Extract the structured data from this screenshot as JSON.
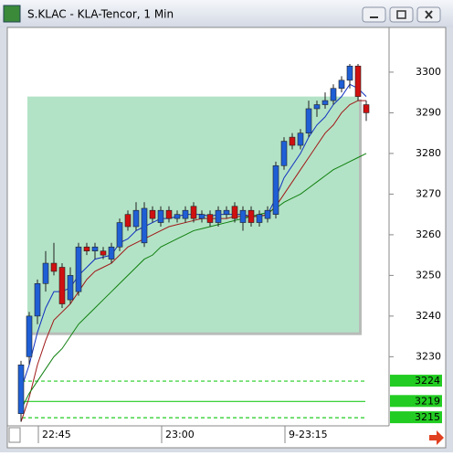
{
  "window": {
    "title": "S.KLAC - KLA-Tencor, 1 Min"
  },
  "chart_data": {
    "type": "candlestick",
    "categories": [
      null,
      null,
      "22:45",
      null,
      null,
      null,
      null,
      null,
      null,
      null,
      null,
      null,
      null,
      null,
      null,
      null,
      null,
      "23:00",
      null,
      null,
      null,
      null,
      null,
      null,
      null,
      null,
      null,
      null,
      null,
      null,
      null,
      null,
      "9-23:15",
      null,
      null,
      null,
      null,
      null,
      null,
      null,
      null,
      null,
      null
    ],
    "open": [
      3216,
      3230,
      3240,
      3248,
      3253,
      3252,
      3244,
      3246,
      3257,
      3256,
      3256,
      3254,
      3257,
      3265,
      3262,
      3258,
      3266,
      3263,
      3266,
      3264,
      3264,
      3267,
      3264,
      3265,
      3263,
      3265,
      3267,
      3263,
      3266,
      3263,
      3264,
      3265,
      3277,
      3284,
      3282,
      3285,
      3291,
      3292,
      3293,
      3296,
      3298,
      3301.5,
      3292
    ],
    "high": [
      3229,
      3241,
      3249,
      3256,
      3258,
      3253,
      3252,
      3258,
      3258,
      3258,
      3257,
      3258,
      3264,
      3266,
      3268,
      3268,
      3267,
      3267,
      3267,
      3266,
      3267,
      3268,
      3266,
      3266,
      3267,
      3267,
      3268,
      3267,
      3267,
      3266,
      3267,
      3278,
      3284,
      3285,
      3286,
      3293,
      3293,
      3295,
      3297,
      3299,
      3302,
      3302,
      3293
    ],
    "low": [
      3214,
      3228,
      3238,
      3246,
      3250,
      3242,
      3243,
      3245,
      3255,
      3254,
      3254,
      3253,
      3256,
      3261,
      3261,
      3257,
      3263,
      3262,
      3263,
      3263,
      3263,
      3263,
      3263,
      3262,
      3262,
      3264,
      3263,
      3261,
      3262,
      3262,
      3263,
      3264,
      3276,
      3281,
      3281,
      3284,
      3289,
      3291,
      3292,
      3295,
      3296,
      3293,
      3288
    ],
    "close": [
      3228,
      3240,
      3248,
      3253,
      3251,
      3243,
      3250,
      3257,
      3256,
      3257,
      3255,
      3257,
      3263,
      3262,
      3266,
      3266.5,
      3264,
      3266,
      3264,
      3265,
      3266,
      3264,
      3265,
      3263,
      3266,
      3266,
      3264,
      3266,
      3263,
      3265,
      3266,
      3277,
      3283,
      3282,
      3285,
      3291,
      3292,
      3293,
      3296,
      3298,
      3301.5,
      3294,
      3290
    ],
    "up_color": "#1f5fd6",
    "down_color": "#d01010",
    "series": [
      {
        "color": "#1030c0",
        "values": [
          3222,
          3228,
          3236,
          3242,
          3246,
          3246,
          3247,
          3250,
          3252,
          3254,
          3254.5,
          3255,
          3258,
          3259,
          3261,
          3262,
          3263,
          3264,
          3264,
          3264.5,
          3265,
          3265,
          3265,
          3264.5,
          3265,
          3265,
          3265,
          3265,
          3264.5,
          3264.5,
          3265,
          3269,
          3274,
          3277,
          3280,
          3284,
          3287,
          3289,
          3292,
          3294,
          3297,
          3296,
          3294
        ]
      },
      {
        "color": "#a01818",
        "values": [
          3214,
          3220,
          3228,
          3234,
          3239,
          3241,
          3243,
          3246,
          3249,
          3251,
          3252,
          3253,
          3255,
          3257,
          3258,
          3259,
          3260,
          3261,
          3262,
          3262.5,
          3263,
          3263.5,
          3264,
          3264,
          3264,
          3264,
          3264.5,
          3264.5,
          3264.5,
          3264.5,
          3265,
          3267,
          3270,
          3273,
          3276,
          3279,
          3282,
          3285,
          3287,
          3290,
          3292,
          3293,
          3293
        ]
      },
      {
        "color": "#108010",
        "values": [
          3217,
          3221,
          3224,
          3227,
          3230,
          3232,
          3235,
          3238,
          3240,
          3242,
          3244,
          3246,
          3248,
          3250,
          3252,
          3254,
          3255,
          3257,
          3258,
          3259,
          3260,
          3261,
          3261.5,
          3262,
          3262.5,
          3263,
          3263.5,
          3264,
          3264.5,
          3265,
          3265.5,
          3266.5,
          3268,
          3269,
          3270,
          3271.5,
          3273,
          3274.5,
          3276,
          3277,
          3278,
          3279,
          3280
        ]
      }
    ],
    "zone": [
      3236,
      3294
    ],
    "zone_color": "#b3e3c6",
    "levels": [
      {
        "value": 3224,
        "style": "dashed"
      },
      {
        "value": 3219,
        "style": "solid"
      },
      {
        "value": 3215,
        "style": "dashed"
      }
    ],
    "level_color": "#22cc22",
    "ylim": [
      3213,
      3311
    ],
    "yticks": [
      3230,
      3240,
      3250,
      3260,
      3270,
      3280,
      3290,
      3300
    ]
  }
}
